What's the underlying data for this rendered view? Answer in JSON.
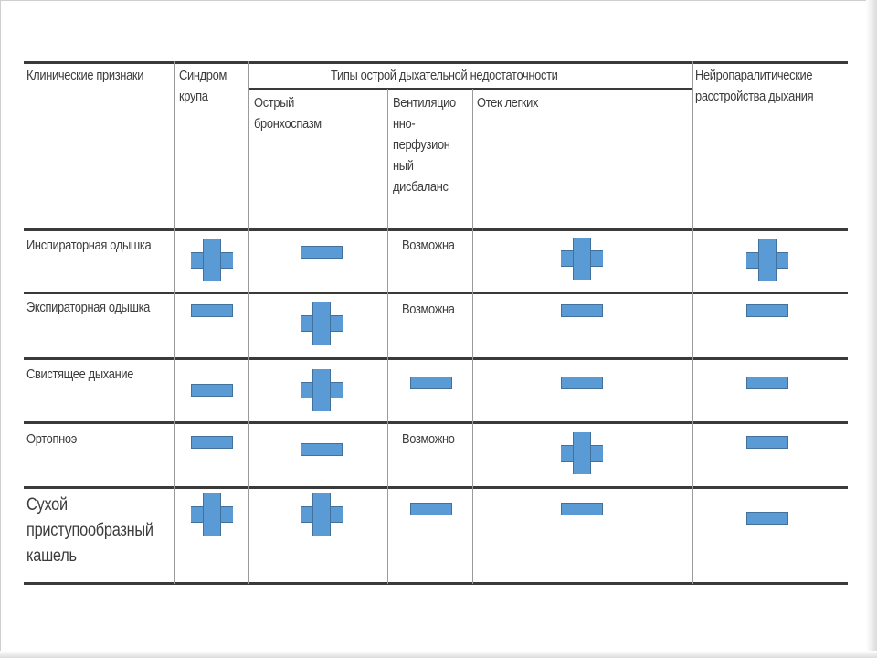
{
  "table": {
    "headers": {
      "col1": "Клинические признаки",
      "col2": "Синдром\nкрупа",
      "group": "Типы острой дыхательной недостаточности",
      "sub1": "Острый\nбронхоспазм",
      "sub2": "Вентиляцио\nнно-\nперфузион\nный\nдисбаланс",
      "sub3": "Отек легких",
      "col4": "Нейропаралитические\nрасстройства дыхания"
    },
    "rows": [
      {
        "label": "Инспираторная одышка",
        "cells": [
          "plus",
          "minus",
          "Возможна",
          "plus",
          "plus"
        ]
      },
      {
        "label": "Экспираторная одышка",
        "cells": [
          "minus",
          "plus",
          "Возможна",
          "minus",
          "minus"
        ]
      },
      {
        "label": "Свистящее дыхание",
        "cells": [
          "minus",
          "plus",
          "minus",
          "minus",
          "minus"
        ]
      },
      {
        "label": "Ортопноэ",
        "cells": [
          "minus",
          "minus",
          "Возможно",
          "plus",
          "minus"
        ]
      },
      {
        "label": "Сухой\nприступообразный\nкашель",
        "cells": [
          "plus",
          "plus",
          "minus",
          "minus",
          "minus"
        ]
      }
    ],
    "legend": {
      "plus": "plus-sign-icon",
      "minus": "minus-sign-icon"
    },
    "colors": {
      "marker_fill": "#5b9bd5",
      "marker_border": "#41719c",
      "rule": "#3a3a3a"
    }
  }
}
